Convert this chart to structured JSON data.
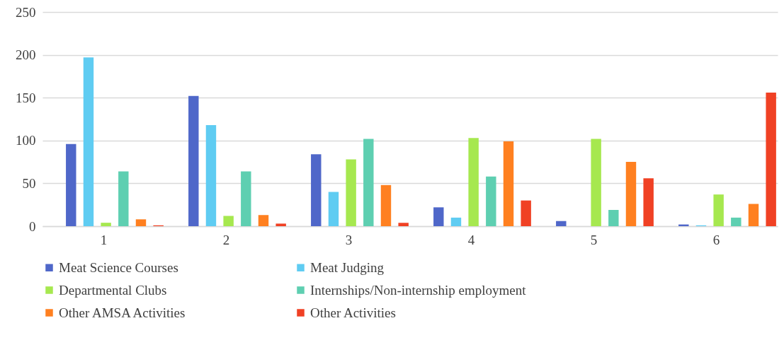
{
  "chart_data": {
    "type": "bar",
    "categories": [
      "1",
      "2",
      "3",
      "4",
      "5",
      "6"
    ],
    "series": [
      {
        "name": "Meat Science Courses",
        "color": "#4f67c9",
        "values": [
          96,
          152,
          84,
          22,
          6,
          2
        ]
      },
      {
        "name": "Meat Judging",
        "color": "#5fccf2",
        "values": [
          197,
          118,
          40,
          10,
          0,
          1
        ]
      },
      {
        "name": "Departmental Clubs",
        "color": "#a6e84f",
        "values": [
          4,
          12,
          78,
          103,
          102,
          37
        ]
      },
      {
        "name": "Internships/Non-internship employment",
        "color": "#5ecfb1",
        "values": [
          64,
          64,
          102,
          58,
          19,
          10
        ]
      },
      {
        "name": "Other AMSA Activities",
        "color": "#ff8020",
        "values": [
          8,
          13,
          48,
          99,
          75,
          26
        ]
      },
      {
        "name": "Other Activities",
        "color": "#f04124",
        "values": [
          1,
          3,
          4,
          30,
          56,
          156
        ]
      }
    ],
    "ylim": [
      0,
      250
    ],
    "yticks": [
      0,
      50,
      100,
      150,
      200,
      250
    ],
    "grid": "y",
    "legend": "bottom"
  }
}
